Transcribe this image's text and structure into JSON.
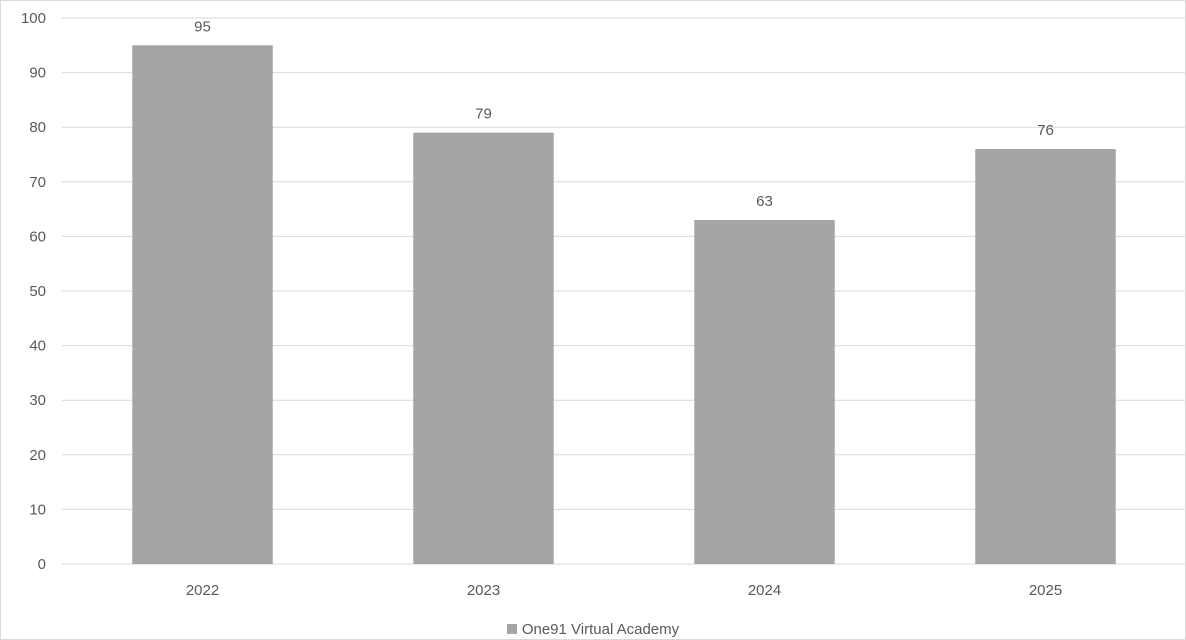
{
  "chart_data": {
    "type": "bar",
    "categories": [
      "2022",
      "2023",
      "2024",
      "2025"
    ],
    "series": [
      {
        "name": "One91 Virtual Academy",
        "values": [
          95,
          79,
          63,
          76
        ],
        "color": "#a5a5a5"
      }
    ],
    "data_labels": [
      "95",
      "79",
      "63",
      "76"
    ],
    "y_ticks": [
      0,
      10,
      20,
      30,
      40,
      50,
      60,
      70,
      80,
      90,
      100
    ],
    "ylim": [
      0,
      100
    ],
    "grid": true,
    "legend_position": "bottom",
    "colors": {
      "gridline": "#d9d9d9",
      "text": "#595959"
    }
  }
}
